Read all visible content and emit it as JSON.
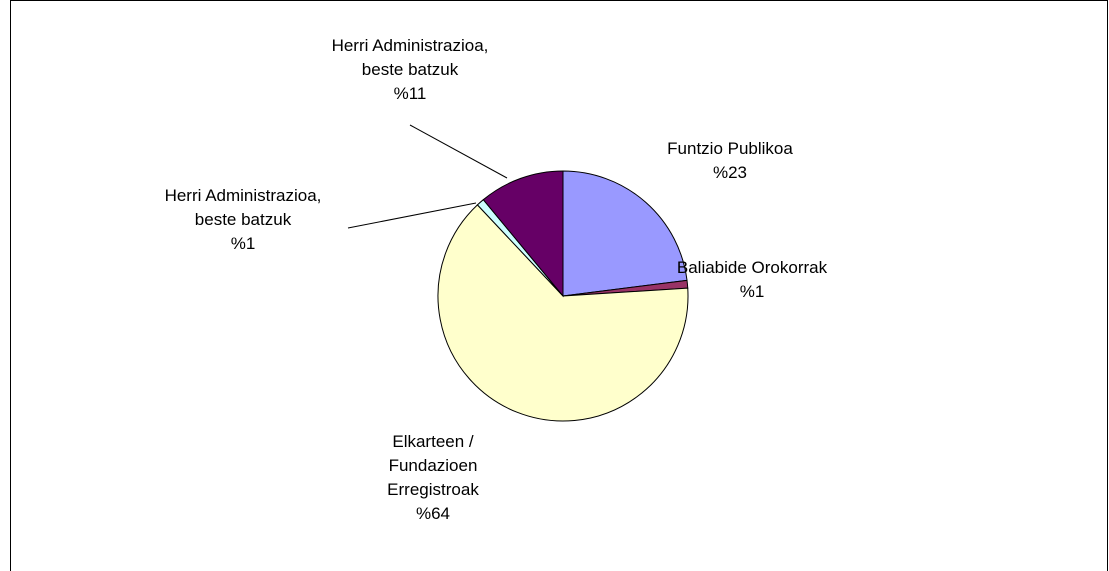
{
  "chart_data": {
    "type": "pie",
    "categories": [
      "Funtzio Publikoa",
      "Baliabide Orokorrak",
      "Elkarteen / Fundazioen Erregistroak",
      "Herri Administrazioa, beste batzuk",
      "Herri Administrazioa, beste batzuk"
    ],
    "values": [
      23,
      1,
      64,
      1,
      11
    ],
    "value_labels": [
      "%23",
      "%1",
      "%64",
      "%1",
      "%11"
    ],
    "colors": [
      "#9999ff",
      "#993366",
      "#ffffcc",
      "#ccffff",
      "#660066"
    ]
  }
}
